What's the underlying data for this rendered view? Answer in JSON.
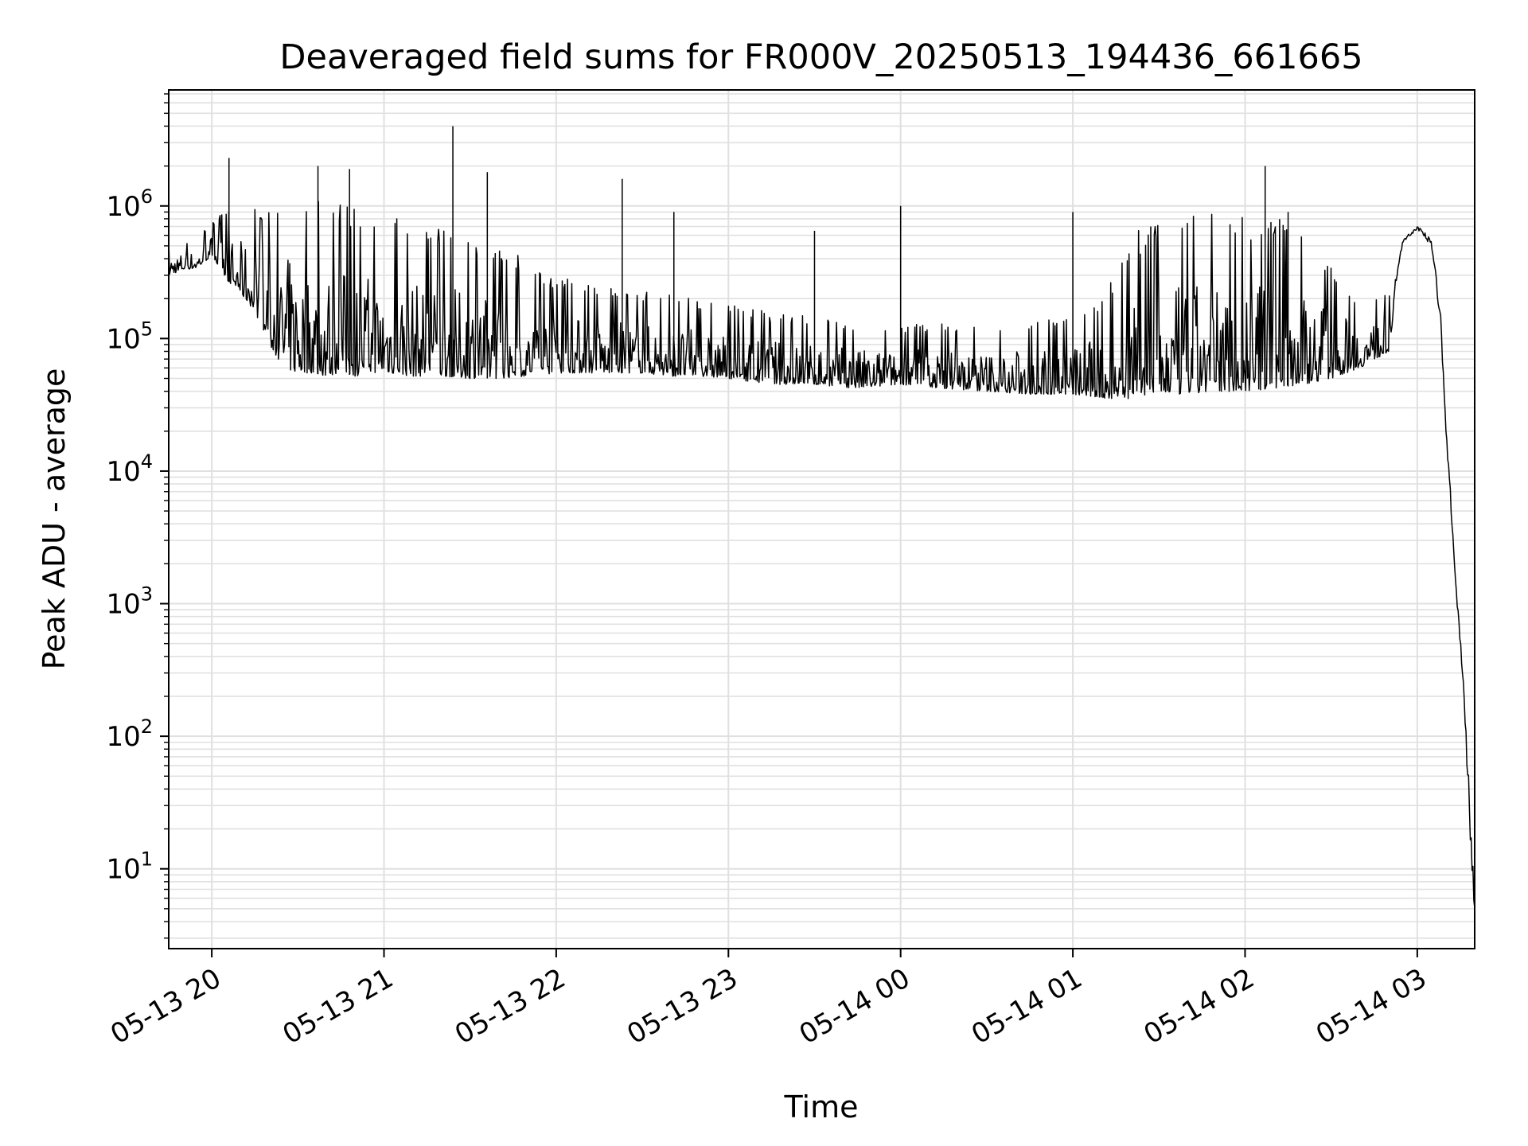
{
  "chart_data": {
    "type": "line",
    "title": "Deaveraged field sums for FR000V_20250513_194436_661665",
    "xlabel": "Time",
    "ylabel": "Peak ADU - average",
    "yscale": "log",
    "ylim": [
      2.5,
      7500000
    ],
    "xlim": [
      "2025-05-13 19:45",
      "2025-05-14 03:20"
    ],
    "grid": true,
    "grid_color": "#e0e0e0",
    "line_color": "#000000",
    "x_ticks": [
      {
        "time": "2025-05-13 20:00",
        "label": "05-13 20"
      },
      {
        "time": "2025-05-13 21:00",
        "label": "05-13 21"
      },
      {
        "time": "2025-05-13 22:00",
        "label": "05-13 22"
      },
      {
        "time": "2025-05-13 23:00",
        "label": "05-13 23"
      },
      {
        "time": "2025-05-14 00:00",
        "label": "05-14 00"
      },
      {
        "time": "2025-05-14 01:00",
        "label": "05-14 01"
      },
      {
        "time": "2025-05-14 02:00",
        "label": "05-14 02"
      },
      {
        "time": "2025-05-14 03:00",
        "label": "05-14 03"
      }
    ],
    "y_ticks": [
      {
        "value": 10,
        "base": "10",
        "exp": "1"
      },
      {
        "value": 100,
        "base": "10",
        "exp": "2"
      },
      {
        "value": 1000,
        "base": "10",
        "exp": "3"
      },
      {
        "value": 10000,
        "base": "10",
        "exp": "4"
      },
      {
        "value": 100000,
        "base": "10",
        "exp": "5"
      },
      {
        "value": 1000000,
        "base": "10",
        "exp": "6"
      }
    ],
    "series": [
      {
        "x": [
          "2025-05-13 19:45",
          "2025-05-13 19:50",
          "2025-05-13 19:55",
          "2025-05-13 20:00",
          "2025-05-13 20:05",
          "2025-05-13 20:10",
          "2025-05-13 20:15",
          "2025-05-13 20:20",
          "2025-05-13 20:25",
          "2025-05-13 20:30",
          "2025-05-13 20:35",
          "2025-05-13 20:40",
          "2025-05-13 20:45",
          "2025-05-13 20:50",
          "2025-05-13 20:55",
          "2025-05-13 21:00",
          "2025-05-13 21:10",
          "2025-05-13 21:20",
          "2025-05-13 21:30",
          "2025-05-13 21:40",
          "2025-05-13 21:50",
          "2025-05-13 22:00",
          "2025-05-13 22:10",
          "2025-05-13 22:20",
          "2025-05-13 22:30",
          "2025-05-13 22:40",
          "2025-05-13 22:50",
          "2025-05-13 23:00",
          "2025-05-13 23:15",
          "2025-05-13 23:30",
          "2025-05-13 23:45",
          "2025-05-14 00:00",
          "2025-05-14 00:15",
          "2025-05-14 00:30",
          "2025-05-14 00:45",
          "2025-05-14 01:00",
          "2025-05-14 01:10",
          "2025-05-14 01:20",
          "2025-05-14 01:30",
          "2025-05-14 01:40",
          "2025-05-14 01:50",
          "2025-05-14 02:00",
          "2025-05-14 02:10",
          "2025-05-14 02:20",
          "2025-05-14 02:30",
          "2025-05-14 02:40",
          "2025-05-14 02:50",
          "2025-05-14 02:55",
          "2025-05-14 03:00",
          "2025-05-14 03:05",
          "2025-05-14 03:08",
          "2025-05-14 03:10",
          "2025-05-14 03:12",
          "2025-05-14 03:14",
          "2025-05-14 03:16",
          "2025-05-14 03:18",
          "2025-05-14 03:20"
        ],
        "y_lo": [
          300000,
          330000,
          340000,
          420000,
          280000,
          220000,
          160000,
          90000,
          60000,
          55000,
          55000,
          52000,
          55000,
          52000,
          55000,
          55000,
          52000,
          52000,
          50000,
          50000,
          52000,
          55000,
          55000,
          55000,
          55000,
          52000,
          52000,
          50000,
          45000,
          45000,
          42000,
          45000,
          42000,
          40000,
          38000,
          38000,
          35000,
          35000,
          38000,
          38000,
          40000,
          40000,
          42000,
          45000,
          50000,
          60000,
          80000,
          500000,
          600000,
          400000,
          80000,
          15000,
          2500,
          600,
          150,
          8,
          3
        ],
        "y_hi": [
          550000,
          550000,
          550000,
          800000,
          900000,
          1000000,
          1000000,
          1200000,
          1500000,
          1500000,
          1300000,
          1300000,
          1200000,
          1000000,
          1000000,
          900000,
          800000,
          700000,
          600000,
          500000,
          400000,
          300000,
          280000,
          250000,
          230000,
          220000,
          200000,
          180000,
          160000,
          150000,
          130000,
          130000,
          130000,
          130000,
          140000,
          160000,
          200000,
          600000,
          800000,
          900000,
          900000,
          850000,
          850000,
          700000,
          400000,
          200000,
          220000,
          600000,
          780000,
          700000,
          300000,
          30000,
          8000,
          1500,
          500,
          150,
          8
        ]
      }
    ],
    "spikes": [
      {
        "x": "2025-05-13 20:06",
        "y": 2300000
      },
      {
        "x": "2025-05-13 20:37",
        "y": 2000000
      },
      {
        "x": "2025-05-13 20:48",
        "y": 1900000
      },
      {
        "x": "2025-05-13 21:24",
        "y": 4000000
      },
      {
        "x": "2025-05-13 21:36",
        "y": 1800000
      },
      {
        "x": "2025-05-13 22:23",
        "y": 1600000
      },
      {
        "x": "2025-05-13 22:41",
        "y": 900000
      },
      {
        "x": "2025-05-13 23:30",
        "y": 650000
      },
      {
        "x": "2025-05-14 00:00",
        "y": 1000000
      },
      {
        "x": "2025-05-14 01:00",
        "y": 900000
      },
      {
        "x": "2025-05-14 02:07",
        "y": 2000000
      },
      {
        "x": "2025-05-14 02:15",
        "y": 900000
      }
    ]
  }
}
